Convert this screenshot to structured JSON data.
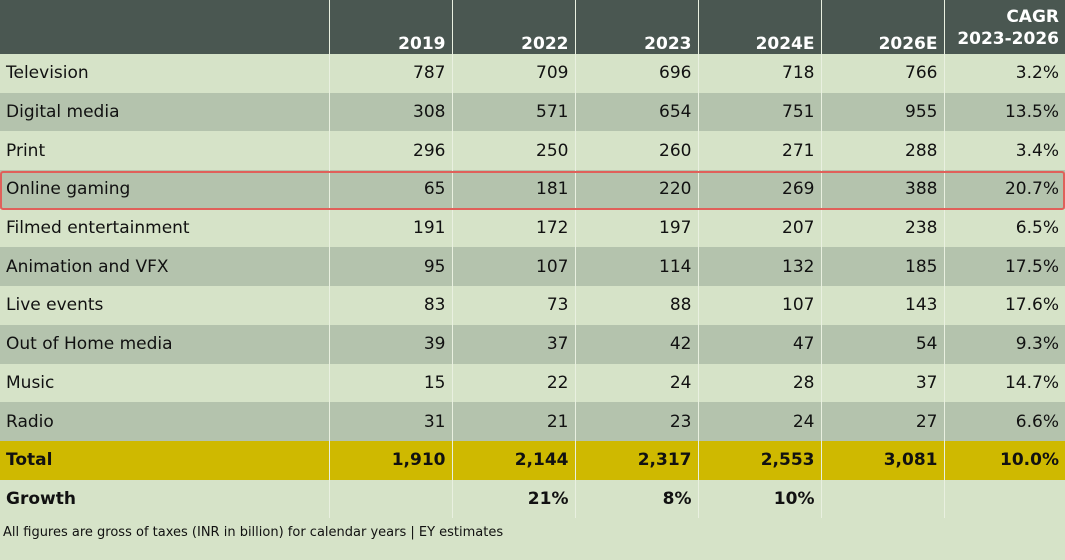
{
  "chart_data": {
    "type": "table",
    "columns": [
      "",
      "2019",
      "2022",
      "2023",
      "2024E",
      "2026E",
      "CAGR 2023-2026"
    ],
    "header": {
      "label": "",
      "c2019": "2019",
      "c2022": "2022",
      "c2023": "2023",
      "c2024": "2024E",
      "c2026": "2026E",
      "cagr_line1": "CAGR",
      "cagr_line2": "2023-2026"
    },
    "rows": [
      {
        "segment": "Television",
        "y2019": "787",
        "y2022": "709",
        "y2023": "696",
        "y2024e": "718",
        "y2026e": "766",
        "cagr": "3.2%"
      },
      {
        "segment": "Digital media",
        "y2019": "308",
        "y2022": "571",
        "y2023": "654",
        "y2024e": "751",
        "y2026e": "955",
        "cagr": "13.5%"
      },
      {
        "segment": "Print",
        "y2019": "296",
        "y2022": "250",
        "y2023": "260",
        "y2024e": "271",
        "y2026e": "288",
        "cagr": "3.4%"
      },
      {
        "segment": "Online gaming",
        "y2019": "65",
        "y2022": "181",
        "y2023": "220",
        "y2024e": "269",
        "y2026e": "388",
        "cagr": "20.7%"
      },
      {
        "segment": "Filmed entertainment",
        "y2019": "191",
        "y2022": "172",
        "y2023": "197",
        "y2024e": "207",
        "y2026e": "238",
        "cagr": "6.5%"
      },
      {
        "segment": "Animation and VFX",
        "y2019": "95",
        "y2022": "107",
        "y2023": "114",
        "y2024e": "132",
        "y2026e": "185",
        "cagr": "17.5%"
      },
      {
        "segment": "Live events",
        "y2019": "83",
        "y2022": "73",
        "y2023": "88",
        "y2024e": "107",
        "y2026e": "143",
        "cagr": "17.6%"
      },
      {
        "segment": "Out of Home media",
        "y2019": "39",
        "y2022": "37",
        "y2023": "42",
        "y2024e": "47",
        "y2026e": "54",
        "cagr": "9.3%"
      },
      {
        "segment": "Music",
        "y2019": "15",
        "y2022": "22",
        "y2023": "24",
        "y2024e": "28",
        "y2026e": "37",
        "cagr": "14.7%"
      },
      {
        "segment": "Radio",
        "y2019": "31",
        "y2022": "21",
        "y2023": "23",
        "y2024e": "24",
        "y2026e": "27",
        "cagr": "6.6%"
      }
    ],
    "total": {
      "segment": "Total",
      "y2019": "1,910",
      "y2022": "2,144",
      "y2023": "2,317",
      "y2024e": "2,553",
      "y2026e": "3,081",
      "cagr": "10.0%"
    },
    "growth": {
      "segment": "Growth",
      "y2019": "",
      "y2022": "21%",
      "y2023": "8%",
      "y2024e": "10%",
      "y2026e": "",
      "cagr": ""
    },
    "highlighted_row": "Online gaming",
    "highlight_color": "#e0605a",
    "header_color": "#4a5751",
    "total_row_color": "#cfb900",
    "footnote": "All figures are gross of taxes (INR in billion) for calendar years | EY estimates"
  }
}
